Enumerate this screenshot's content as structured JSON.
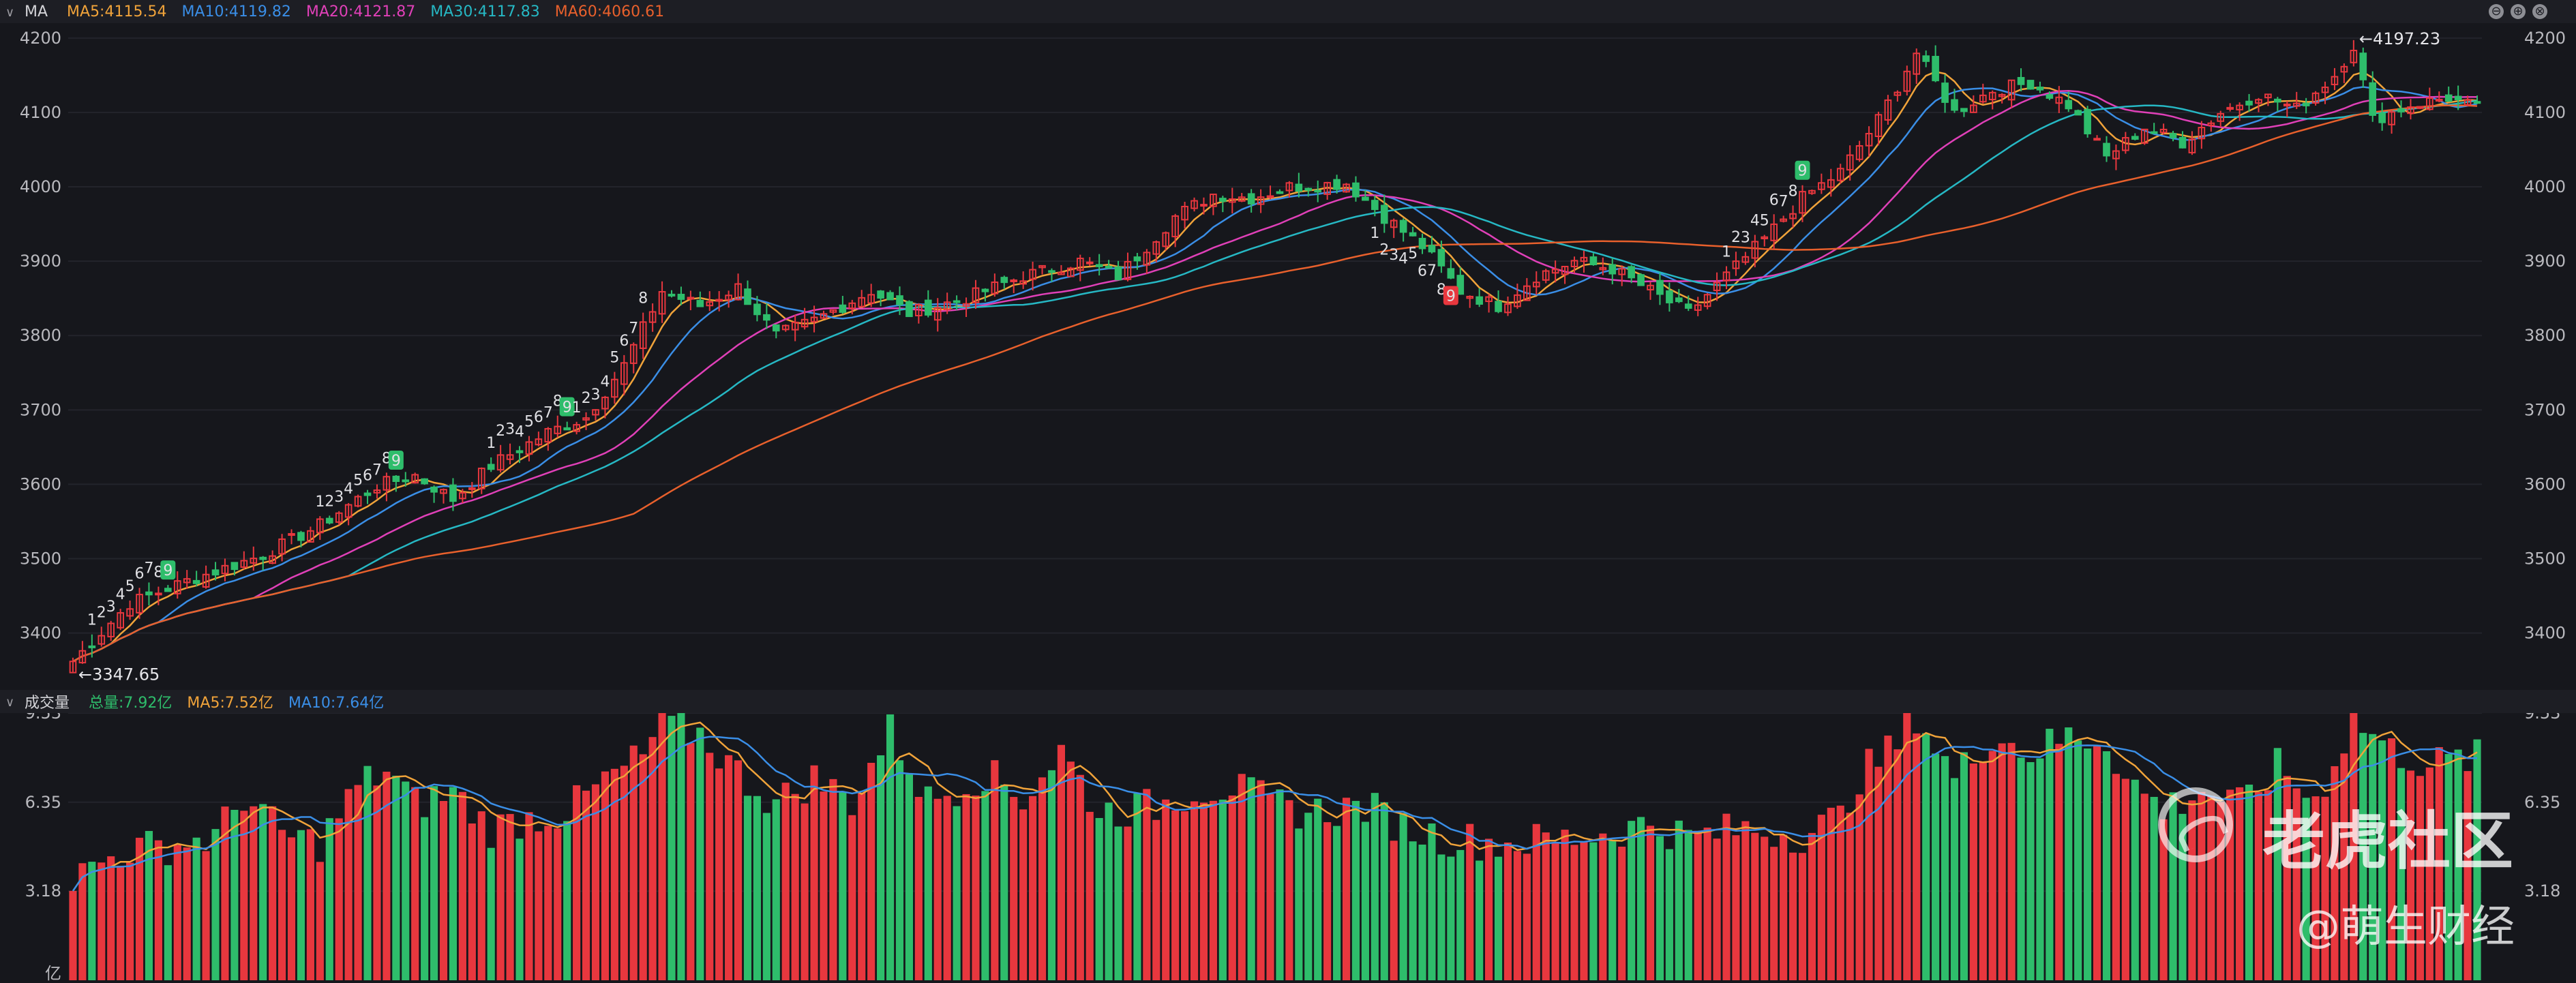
{
  "main_header": {
    "toggle": "∨",
    "name": "MA",
    "indicators": [
      {
        "label": "MA5:4115.54",
        "color": "#f0a33a"
      },
      {
        "label": "MA10:4119.82",
        "color": "#3a8ee6"
      },
      {
        "label": "MA20:4121.87",
        "color": "#e040b8"
      },
      {
        "label": "MA30:4117.83",
        "color": "#26b8c4"
      },
      {
        "label": "MA60:4060.61",
        "color": "#e8602c"
      }
    ],
    "controls": [
      "⊖",
      "⊕",
      "⊗"
    ]
  },
  "volume_header": {
    "toggle": "∨",
    "name": "成交量",
    "indicators": [
      {
        "label": "总量:7.92亿",
        "color": "#2ebd6b"
      },
      {
        "label": "MA5:7.52亿",
        "color": "#f0a33a"
      },
      {
        "label": "MA10:7.64亿",
        "color": "#3a8ee6"
      }
    ]
  },
  "watermark": {
    "brand": "老虎社区",
    "author": "@萌生财经"
  },
  "chart_data": [
    {
      "type": "candlestick",
      "ylim": [
        3330,
        4220
      ],
      "y_ticks": [
        3400,
        3500,
        3600,
        3700,
        3800,
        3900,
        4000,
        4100,
        4200
      ],
      "annotations": [
        {
          "label": "←4197.23",
          "value": 4197.23,
          "type": "high"
        },
        {
          "label": "←3347.65",
          "value": 3347.65,
          "type": "low"
        }
      ],
      "colors": {
        "up": "#e8373e",
        "down": "#2ebd6b"
      },
      "ma_series": [
        {
          "name": "MA5",
          "period": 5,
          "color": "#f0a33a"
        },
        {
          "name": "MA10",
          "period": 10,
          "color": "#3a8ee6"
        },
        {
          "name": "MA20",
          "period": 20,
          "color": "#e040b8"
        },
        {
          "name": "MA30",
          "period": 30,
          "color": "#26b8c4"
        },
        {
          "name": "MA60",
          "period": 60,
          "color": "#e8602c"
        }
      ],
      "key_closes": [
        [
          0,
          3362
        ],
        [
          6,
          3440
        ],
        [
          12,
          3470
        ],
        [
          20,
          3505
        ],
        [
          26,
          3545
        ],
        [
          32,
          3598
        ],
        [
          36,
          3612
        ],
        [
          40,
          3580
        ],
        [
          44,
          3625
        ],
        [
          50,
          3670
        ],
        [
          54,
          3690
        ],
        [
          58,
          3760
        ],
        [
          62,
          3860
        ],
        [
          66,
          3840
        ],
        [
          70,
          3865
        ],
        [
          74,
          3800
        ],
        [
          78,
          3820
        ],
        [
          84,
          3860
        ],
        [
          88,
          3830
        ],
        [
          94,
          3850
        ],
        [
          100,
          3880
        ],
        [
          106,
          3900
        ],
        [
          110,
          3880
        ],
        [
          116,
          3960
        ],
        [
          120,
          3990
        ],
        [
          124,
          3985
        ],
        [
          128,
          4000
        ],
        [
          134,
          4005
        ],
        [
          138,
          3960
        ],
        [
          142,
          3920
        ],
        [
          146,
          3860
        ],
        [
          150,
          3840
        ],
        [
          154,
          3880
        ],
        [
          158,
          3900
        ],
        [
          162,
          3890
        ],
        [
          166,
          3860
        ],
        [
          170,
          3830
        ],
        [
          174,
          3880
        ],
        [
          178,
          3930
        ],
        [
          182,
          3985
        ],
        [
          186,
          4020
        ],
        [
          190,
          4090
        ],
        [
          194,
          4180
        ],
        [
          198,
          4100
        ],
        [
          202,
          4130
        ],
        [
          206,
          4140
        ],
        [
          210,
          4110
        ],
        [
          214,
          4040
        ],
        [
          218,
          4080
        ],
        [
          222,
          4060
        ],
        [
          226,
          4100
        ],
        [
          230,
          4125
        ],
        [
          234,
          4105
        ],
        [
          238,
          4150
        ],
        [
          240,
          4190
        ],
        [
          242,
          4090
        ],
        [
          246,
          4110
        ],
        [
          250,
          4120
        ],
        [
          253,
          4105
        ]
      ],
      "td_sequences": [
        {
          "start": 2,
          "labels": [
            "1",
            "2",
            "3",
            "4",
            "5",
            "6",
            "7",
            "8",
            "9"
          ],
          "position": "above"
        },
        {
          "start": 26,
          "labels": [
            "1",
            "2",
            "3",
            "4",
            "5",
            "6",
            "7",
            "8",
            "9"
          ],
          "position": "above"
        },
        {
          "start": 44,
          "labels": [
            "1",
            "2",
            "3",
            "4",
            "5",
            "6",
            "7",
            "8",
            "9"
          ],
          "position": "above"
        },
        {
          "start": 53,
          "labels": [
            "1",
            "2",
            "3",
            "4",
            "5",
            "6",
            "7",
            "8"
          ],
          "position": "above"
        },
        {
          "start": 137,
          "labels": [
            "1",
            "2",
            "3",
            "4",
            "5",
            "6",
            "7",
            "8",
            "9"
          ],
          "position": "below"
        },
        {
          "start": 174,
          "labels": [
            "1",
            "2",
            "3",
            "4",
            "5",
            "6",
            "7",
            "8",
            "9"
          ],
          "position": "above"
        }
      ]
    },
    {
      "type": "bar",
      "ylim": [
        0,
        9.53
      ],
      "y_ticks": [
        "9.53",
        "6.35",
        "3.18"
      ],
      "unit": "亿",
      "ma_series": [
        {
          "name": "MA5",
          "period": 5,
          "color": "#f0a33a"
        },
        {
          "name": "MA10",
          "period": 10,
          "color": "#3a8ee6"
        }
      ],
      "key_volumes": [
        [
          0,
          3.6
        ],
        [
          5,
          4.6
        ],
        [
          10,
          4.8
        ],
        [
          15,
          5.1
        ],
        [
          18,
          6.6
        ],
        [
          22,
          5.2
        ],
        [
          26,
          4.9
        ],
        [
          30,
          6.9
        ],
        [
          33,
          7.5
        ],
        [
          36,
          6.3
        ],
        [
          40,
          6.7
        ],
        [
          44,
          5.4
        ],
        [
          48,
          5.8
        ],
        [
          52,
          6.0
        ],
        [
          56,
          7.1
        ],
        [
          60,
          8.0
        ],
        [
          62,
          9.2
        ],
        [
          66,
          8.8
        ],
        [
          70,
          7.4
        ],
        [
          74,
          6.3
        ],
        [
          78,
          7.2
        ],
        [
          82,
          6.4
        ],
        [
          86,
          8.9
        ],
        [
          90,
          6.4
        ],
        [
          96,
          7.4
        ],
        [
          100,
          6.5
        ],
        [
          104,
          8.2
        ],
        [
          108,
          6.0
        ],
        [
          114,
          6.2
        ],
        [
          118,
          6.8
        ],
        [
          122,
          6.9
        ],
        [
          126,
          6.3
        ],
        [
          130,
          6.0
        ],
        [
          136,
          6.2
        ],
        [
          140,
          5.5
        ],
        [
          144,
          5.1
        ],
        [
          150,
          4.9
        ],
        [
          156,
          5.0
        ],
        [
          162,
          5.3
        ],
        [
          166,
          5.6
        ],
        [
          170,
          5.1
        ],
        [
          176,
          5.4
        ],
        [
          182,
          5.2
        ],
        [
          186,
          5.8
        ],
        [
          188,
          7.3
        ],
        [
          192,
          8.4
        ],
        [
          194,
          9.5
        ],
        [
          198,
          7.2
        ],
        [
          202,
          8.8
        ],
        [
          206,
          8.1
        ],
        [
          210,
          8.7
        ],
        [
          214,
          8.6
        ],
        [
          216,
          7.2
        ],
        [
          220,
          6.1
        ],
        [
          224,
          6.8
        ],
        [
          228,
          6.2
        ],
        [
          232,
          7.6
        ],
        [
          236,
          6.4
        ],
        [
          240,
          9.3
        ],
        [
          244,
          8.2
        ],
        [
          248,
          7.7
        ],
        [
          253,
          7.92
        ]
      ]
    }
  ]
}
